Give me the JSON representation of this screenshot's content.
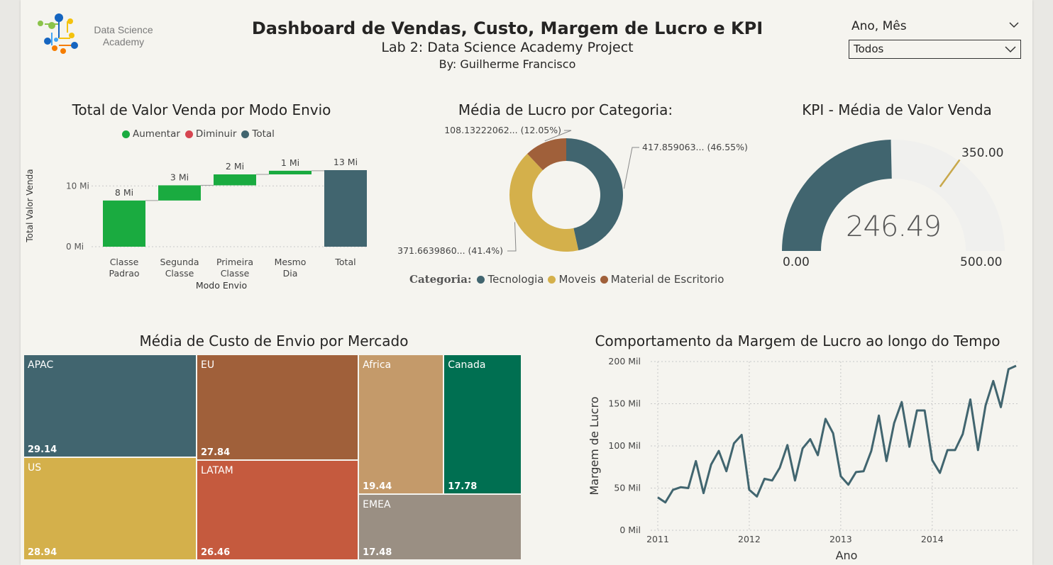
{
  "header": {
    "logo_text": "Data Science Academy",
    "title": "Dashboard de Vendas, Custo, Margem de Lucro e KPI",
    "subtitle": "Lab 2: Data Science Academy Project",
    "author": "By: Guilherme Francisco"
  },
  "slicer": {
    "header": "Ano, Mês",
    "selected": "Todos"
  },
  "colors": {
    "increase": "#1aab40",
    "decrease": "#d64550",
    "total": "#41656f",
    "tecnologia": "#41656f",
    "moveis": "#d4b04b",
    "material": "#a0603a",
    "gauge_fill": "#41656f",
    "gauge_bg": "#f0f0ee",
    "gauge_target": "#c8a84b",
    "line": "#41656f"
  },
  "waterfall": {
    "title": "Total de Valor Venda por Modo Envio",
    "legend": [
      {
        "label": "Aumentar",
        "color_key": "increase"
      },
      {
        "label": "Diminuir",
        "color_key": "decrease"
      },
      {
        "label": "Total",
        "color_key": "total"
      }
    ]
  },
  "donut": {
    "title": "Média de Lucro por Categoria:",
    "legend_title": "Categoria:",
    "legend": [
      "Tecnologia",
      "Moveis",
      "Material de Escritorio"
    ]
  },
  "gauge": {
    "title": "KPI - Média de Valor Venda",
    "value_label": "246.49",
    "min_label": "0.00",
    "max_label": "500.00",
    "target_label": "350.00"
  },
  "treemap": {
    "title": "Média de Custo de Envio por Mercado"
  },
  "linechart": {
    "title": "Comportamento da Margem de Lucro ao longo do Tempo"
  },
  "chart_data": [
    {
      "type": "waterfall",
      "title": "Total de Valor Venda por Modo Envio",
      "xlabel": "Modo Envio",
      "ylabel": "Total Valor Venda",
      "categories": [
        "Classe Padrao",
        "Segunda Classe",
        "Primeira Classe",
        "Mesmo Dia",
        "Total"
      ],
      "values": [
        7.6,
        2.5,
        1.8,
        0.6,
        12.6
      ],
      "data_labels": [
        "8 Mi",
        "3 Mi",
        "2 Mi",
        "1 Mi",
        "13 Mi"
      ],
      "kinds": [
        "increase",
        "increase",
        "increase",
        "increase",
        "total"
      ],
      "yticks": [
        "0 Mi",
        "10 Mi"
      ],
      "ytick_values": [
        0,
        10
      ],
      "ylim": [
        0,
        14
      ],
      "grid": true
    },
    {
      "type": "pie",
      "title": "Média de Lucro por Categoria:",
      "legend_title": "Categoria:",
      "slices": [
        {
          "name": "Tecnologia",
          "value": 417.859063,
          "label": "417.859063... (46.55%)",
          "percent": 46.55
        },
        {
          "name": "Moveis",
          "value": 371.663986,
          "label": "371.6639860... (41.4%)",
          "percent": 41.4
        },
        {
          "name": "Material de Escritorio",
          "value": 108.13222062,
          "label": "108.13222062... (12.05%)",
          "percent": 12.05
        }
      ]
    },
    {
      "type": "gauge",
      "title": "KPI - Média de Valor Venda",
      "value": 246.49,
      "min": 0,
      "max": 500,
      "target": 350
    },
    {
      "type": "treemap",
      "title": "Média de Custo de Envio por Mercado",
      "items": [
        {
          "name": "APAC",
          "value": 29.14,
          "label": "29.14",
          "color": "#41656f"
        },
        {
          "name": "US",
          "value": 28.94,
          "label": "28.94",
          "color": "#d4b04b"
        },
        {
          "name": "EU",
          "value": 27.84,
          "label": "27.84",
          "color": "#a0603a"
        },
        {
          "name": "LATAM",
          "value": 26.46,
          "label": "26.46",
          "color": "#c55a3e"
        },
        {
          "name": "Africa",
          "value": 19.44,
          "label": "19.44",
          "color": "#c49a6a"
        },
        {
          "name": "Canada",
          "value": 17.78,
          "label": "17.78",
          "color": "#006f51"
        },
        {
          "name": "EMEA",
          "value": 17.48,
          "label": "17.48",
          "color": "#9a8f83"
        }
      ]
    },
    {
      "type": "line",
      "title": "Comportamento da Margem de Lucro ao longo do Tempo",
      "xlabel": "Ano",
      "ylabel": "Margem de Lucro",
      "xticks": [
        "2011",
        "2012",
        "2013",
        "2014"
      ],
      "yticks": [
        "0 Mil",
        "50 Mil",
        "100 Mil",
        "150 Mil",
        "200 Mil"
      ],
      "ytick_values": [
        0,
        50,
        100,
        150,
        200
      ],
      "ylim": [
        0,
        200
      ],
      "grid": true,
      "x_start": "2011-01",
      "x_end": "2014-12",
      "series": [
        {
          "values": [
            39,
            33,
            48,
            51,
            50,
            82,
            44,
            78,
            94,
            70,
            103,
            113,
            48,
            40,
            61,
            59,
            74,
            101,
            59,
            97,
            108,
            89,
            132,
            115,
            64,
            54,
            69,
            70,
            94,
            136,
            82,
            127,
            152,
            99,
            142,
            142,
            83,
            68,
            95,
            95,
            114,
            155,
            95,
            148,
            177,
            146,
            191,
            195
          ]
        }
      ]
    }
  ]
}
